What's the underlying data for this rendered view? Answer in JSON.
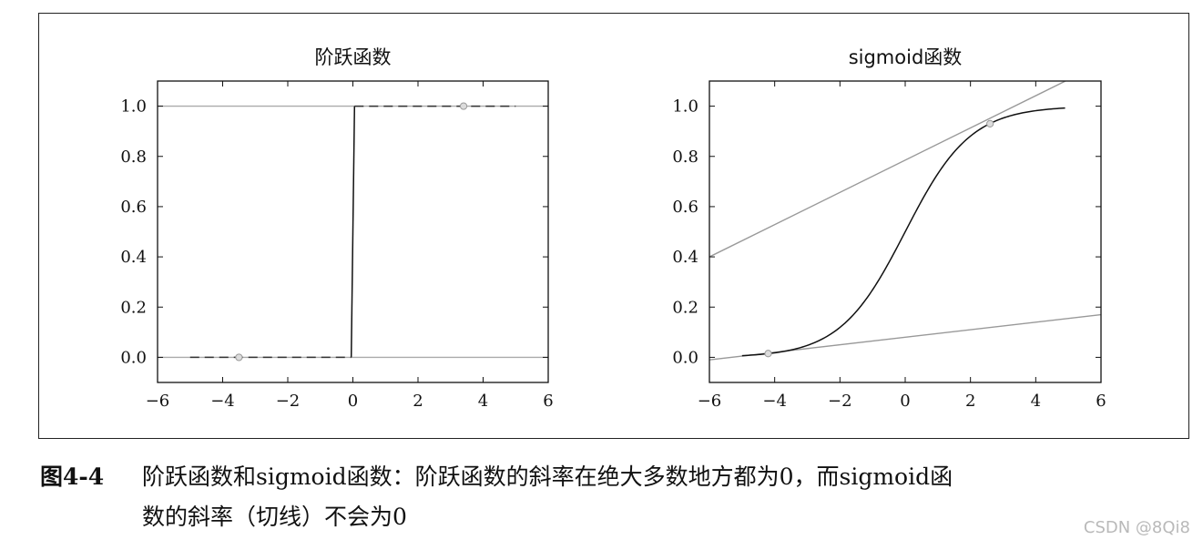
{
  "chart_data": [
    {
      "type": "line",
      "title": "阶跃函数",
      "xlim": [
        -6,
        6
      ],
      "ylim": [
        -0.1,
        1.1
      ],
      "xticks": [
        -6,
        -4,
        -2,
        0,
        2,
        4,
        6
      ],
      "xtick_labels": [
        "−6",
        "−4",
        "−2",
        "0",
        "2",
        "4",
        "6"
      ],
      "yticks": [
        0.0,
        0.2,
        0.4,
        0.6,
        0.8,
        1.0
      ],
      "ytick_labels": [
        "0.0",
        "0.2",
        "0.4",
        "0.6",
        "0.8",
        "1.0"
      ],
      "series": [
        {
          "style": "solid",
          "color": "#111111",
          "x": [
            -0.05,
            0.05
          ],
          "y": [
            0.0,
            1.0
          ]
        },
        {
          "style": "dashed",
          "color": "#333333",
          "x": [
            -5.0,
            -0.05
          ],
          "y": [
            0.0,
            0.0
          ]
        },
        {
          "style": "dashed",
          "color": "#333333",
          "x": [
            0.05,
            5.0
          ],
          "y": [
            1.0,
            1.0
          ]
        }
      ],
      "tangent_lines": [
        {
          "color": "#aaaaaa",
          "x": [
            -6,
            6
          ],
          "y": [
            0.0,
            0.0
          ]
        },
        {
          "color": "#aaaaaa",
          "x": [
            -6,
            6
          ],
          "y": [
            1.0,
            1.0
          ]
        }
      ],
      "points": [
        {
          "x": -3.5,
          "y": 0.0
        },
        {
          "x": 3.4,
          "y": 1.0
        }
      ]
    },
    {
      "type": "line",
      "title": "sigmoid函数",
      "xlim": [
        -6,
        6
      ],
      "ylim": [
        -0.1,
        1.1
      ],
      "xticks": [
        -6,
        -4,
        -2,
        0,
        2,
        4,
        6
      ],
      "xtick_labels": [
        "−6",
        "−4",
        "−2",
        "0",
        "2",
        "4",
        "6"
      ],
      "yticks": [
        0.0,
        0.2,
        0.4,
        0.6,
        0.8,
        1.0
      ],
      "ytick_labels": [
        "0.0",
        "0.2",
        "0.4",
        "0.6",
        "0.8",
        "1.0"
      ],
      "series": [
        {
          "style": "solid",
          "color": "#111111",
          "function": "sigmoid",
          "x_range": [
            -5.0,
            4.9
          ]
        }
      ],
      "tangent_lines": [
        {
          "color": "#999999",
          "x": [
            -6,
            6
          ],
          "y": [
            0.4,
            1.17
          ]
        },
        {
          "color": "#999999",
          "x": [
            -6,
            6
          ],
          "y": [
            -0.01,
            0.17
          ]
        }
      ],
      "points": [
        {
          "x": 2.6,
          "y": 0.93
        },
        {
          "x": -4.2,
          "y": 0.015
        }
      ]
    }
  ],
  "caption": {
    "figure": "图4-4",
    "line1": "阶跃函数和sigmoid函数：阶跃函数的斜率在绝大多数地方都为0，而sigmoid函",
    "line2": "数的斜率（切线）不会为0"
  },
  "watermark": "CSDN @8Qi8"
}
